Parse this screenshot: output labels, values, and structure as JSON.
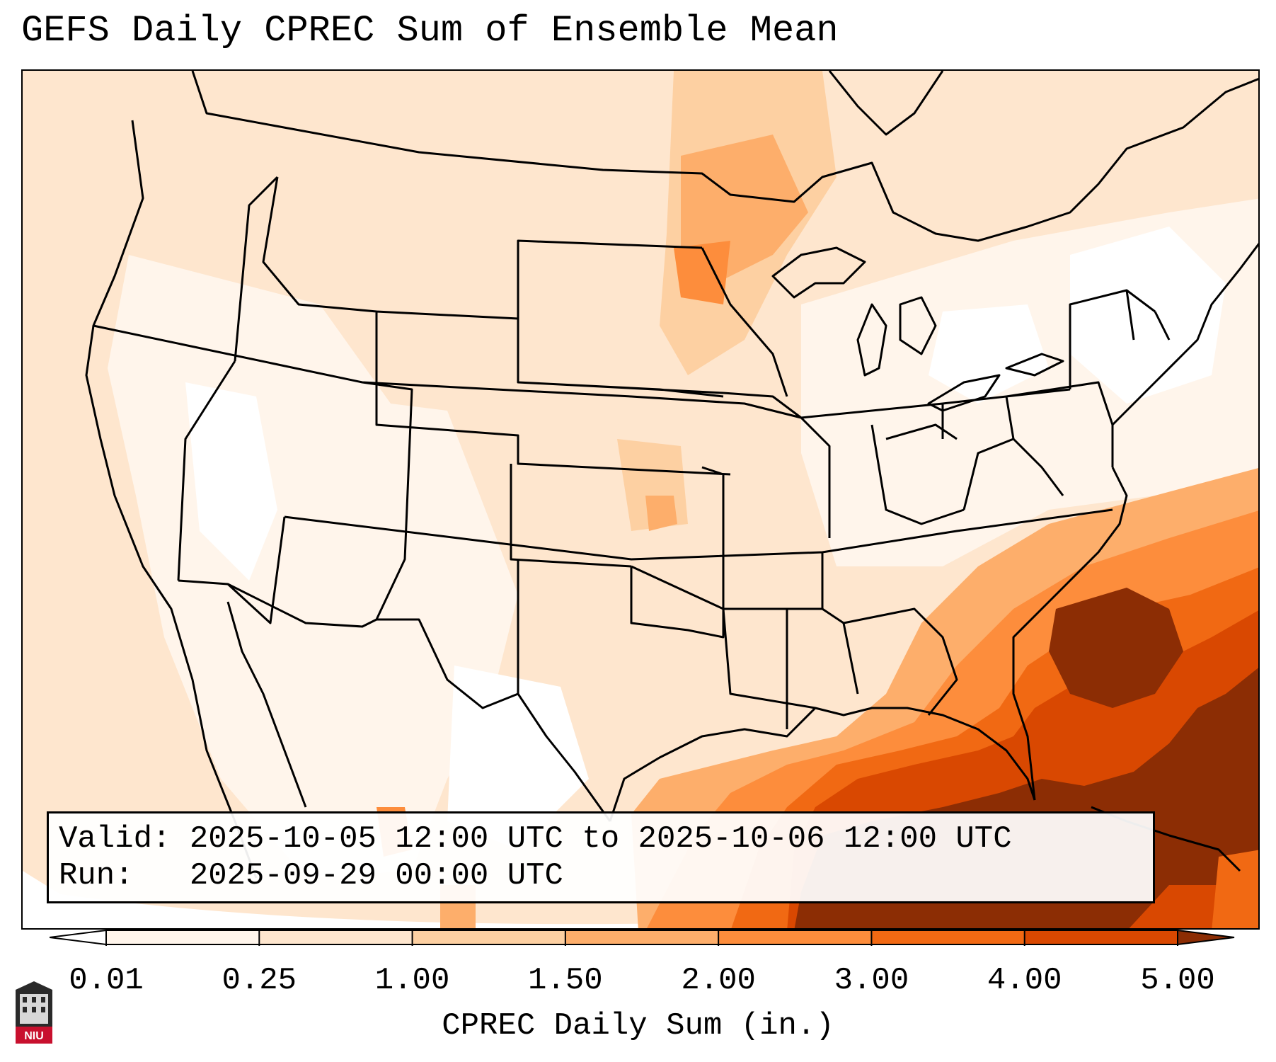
{
  "title": "GEFS Daily CPREC Sum of Ensemble Mean",
  "info": {
    "valid_line": "Valid: 2025-10-05 12:00 UTC to 2025-10-06 12:00 UTC",
    "run_line": "Run:   2025-09-29 00:00 UTC"
  },
  "colorbar": {
    "title": "CPREC Daily Sum (in.)",
    "ticks": [
      "0.01",
      "0.25",
      "1.00",
      "1.50",
      "2.00",
      "3.00",
      "4.00",
      "5.00"
    ],
    "colors": [
      "#fff5eb",
      "#fee6ce",
      "#fdd0a2",
      "#fdae6b",
      "#fd8d3c",
      "#f16913",
      "#d94801"
    ],
    "under_color": "#ffffff",
    "over_color": "#8c2d04"
  },
  "logo": {
    "text": "NIU"
  }
}
